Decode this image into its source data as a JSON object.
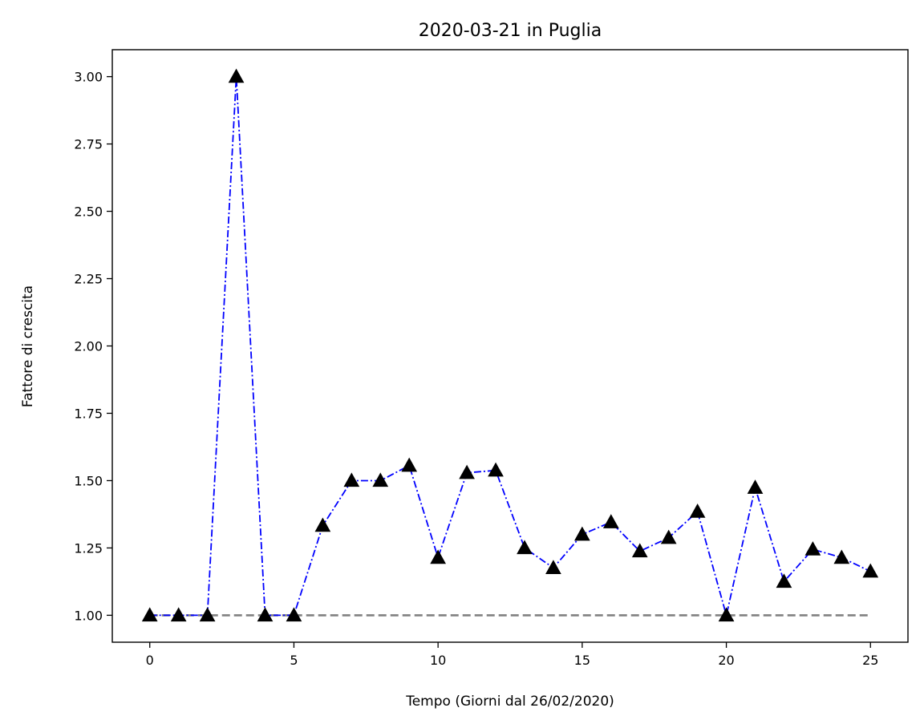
{
  "chart_data": {
    "type": "line",
    "title": "2020-03-21 in Puglia",
    "xlabel": "Tempo (Giorni dal 26/02/2020)",
    "ylabel": "Fattore di crescita",
    "xlim": [
      -1.3,
      26.3
    ],
    "ylim": [
      0.9,
      3.1
    ],
    "xticks": [
      0,
      5,
      10,
      15,
      20,
      25
    ],
    "yticks": [
      1.0,
      1.25,
      1.5,
      1.75,
      2.0,
      2.25,
      2.5,
      2.75,
      3.0
    ],
    "xtick_labels": [
      "0",
      "5",
      "10",
      "15",
      "20",
      "25"
    ],
    "ytick_labels": [
      "1.00",
      "1.25",
      "1.50",
      "1.75",
      "2.00",
      "2.25",
      "2.50",
      "2.75",
      "3.00"
    ],
    "grid": false,
    "series": [
      {
        "color": "#0000ff",
        "line_style": "dash-dot",
        "marker": "triangle",
        "marker_color": "#000000",
        "x": [
          0,
          1,
          2,
          3,
          4,
          5,
          6,
          7,
          8,
          9,
          10,
          11,
          12,
          13,
          14,
          15,
          16,
          17,
          18,
          19,
          20,
          21,
          22,
          23,
          24,
          25
        ],
        "values": [
          1.0,
          1.0,
          1.0,
          3.0,
          1.0,
          1.0,
          1.333,
          1.5,
          1.5,
          1.556,
          1.214,
          1.529,
          1.538,
          1.25,
          1.176,
          1.3,
          1.346,
          1.238,
          1.288,
          1.385,
          1.0,
          1.474,
          1.125,
          1.245,
          1.214,
          1.163
        ]
      }
    ],
    "reference_lines": [
      {
        "y": 1.0,
        "x_range": [
          0,
          25
        ],
        "color": "#808080",
        "line_style": "dashed"
      }
    ]
  }
}
